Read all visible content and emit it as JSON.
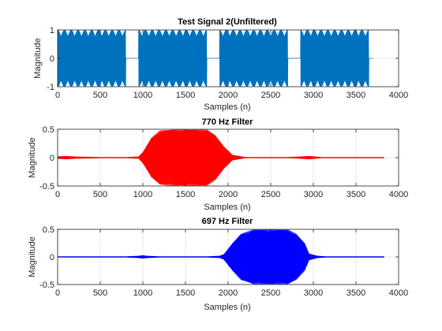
{
  "chart_data": [
    {
      "type": "line",
      "title": "Test Signal 2(Unfiltered)",
      "xlabel": "Samples (n)",
      "ylabel": "Magnitude",
      "xlim": [
        0,
        4000
      ],
      "ylim": [
        -1,
        1
      ],
      "xticks": [
        0,
        500,
        1000,
        1500,
        2000,
        2500,
        3000,
        3500,
        4000
      ],
      "yticks": [
        -1,
        0,
        1
      ],
      "grid": true,
      "color": "#0072BD",
      "series": [
        {
          "style": "burst-signal",
          "x_extent": [
            0,
            3700
          ],
          "bursts": [
            {
              "start": 0,
              "end": 800,
              "amplitude": 1.0
            },
            {
              "start": 950,
              "end": 1750,
              "amplitude": 1.0
            },
            {
              "start": 1900,
              "end": 2700,
              "amplitude": 1.0
            },
            {
              "start": 2850,
              "end": 3650,
              "amplitude": 1.0
            }
          ],
          "gap_value": 0
        }
      ]
    },
    {
      "type": "line",
      "title": "770 Hz Filter",
      "xlabel": "Samples (n)",
      "ylabel": "Magnitude",
      "xlim": [
        0,
        4000
      ],
      "ylim": [
        -0.5,
        0.5
      ],
      "xticks": [
        0,
        500,
        1000,
        1500,
        2000,
        2500,
        3000,
        3500,
        4000
      ],
      "yticks": [
        -0.5,
        0,
        0.5
      ],
      "grid": true,
      "color": "#FF0000",
      "series": [
        {
          "style": "filtered-response",
          "x_extent": [
            0,
            3830
          ],
          "envelope_x": [
            0,
            100,
            200,
            500,
            800,
            950,
            1000,
            1100,
            1200,
            1350,
            1750,
            1850,
            1950,
            2050,
            2200,
            2700,
            2850,
            2950,
            3100,
            3650,
            3830
          ],
          "envelope_y": [
            0.02,
            0.03,
            0.02,
            0.01,
            0.01,
            0.02,
            0.1,
            0.35,
            0.48,
            0.5,
            0.5,
            0.4,
            0.2,
            0.05,
            0.01,
            0.01,
            0.02,
            0.03,
            0.01,
            0.01,
            0.01
          ]
        }
      ]
    },
    {
      "type": "line",
      "title": "697 Hz Filter",
      "xlabel": "Samples (n)",
      "ylabel": "Magnitude",
      "xlim": [
        0,
        4000
      ],
      "ylim": [
        -0.5,
        0.5
      ],
      "xticks": [
        0,
        500,
        1000,
        1500,
        2000,
        2500,
        3000,
        3500,
        4000
      ],
      "yticks": [
        -0.5,
        0,
        0.5
      ],
      "grid": true,
      "color": "#0000FF",
      "series": [
        {
          "style": "filtered-response",
          "x_extent": [
            0,
            3830
          ],
          "envelope_x": [
            0,
            200,
            800,
            950,
            1000,
            1050,
            1200,
            1750,
            1900,
            1950,
            2050,
            2150,
            2300,
            2700,
            2800,
            2900,
            2950,
            3050,
            3150,
            3650,
            3830
          ],
          "envelope_y": [
            0.01,
            0.01,
            0.01,
            0.02,
            0.03,
            0.02,
            0.01,
            0.01,
            0.02,
            0.05,
            0.25,
            0.42,
            0.5,
            0.5,
            0.42,
            0.25,
            0.06,
            0.02,
            0.01,
            0.01,
            0.01
          ]
        }
      ]
    }
  ]
}
